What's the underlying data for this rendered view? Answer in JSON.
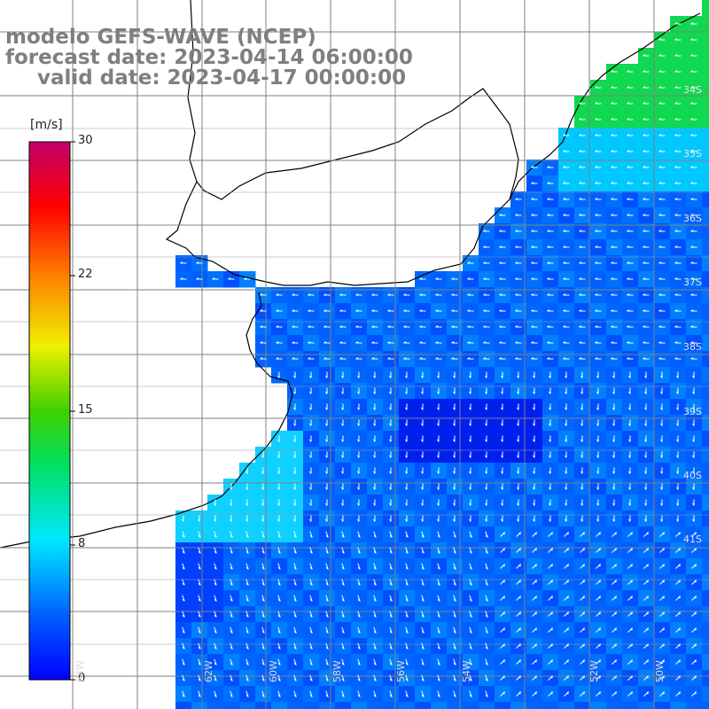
{
  "header": {
    "title_line1": "modelo GEFS-WAVE (NCEP)",
    "title_line2": "forecast date: 2023-04-14 06:00:00",
    "title_line3": "valid date: 2023-04-17 00:00:00"
  },
  "colorbar": {
    "unit": "[m/s]",
    "ticks": [
      "30",
      "22",
      "15",
      "8",
      "0"
    ],
    "colors": [
      "#0000ff",
      "#0088ff",
      "#00d8ff",
      "#00e060",
      "#20d000",
      "#f0f000",
      "#ff8000",
      "#ff0000",
      "#d0005a",
      "#c0006a"
    ]
  },
  "map": {
    "lat_labels": [
      "34S",
      "35S",
      "36S",
      "37S",
      "38S",
      "39S",
      "40S",
      "41S"
    ],
    "lon_labels": [
      "64W",
      "62W",
      "60W",
      "58W",
      "56W",
      "54W",
      "52W",
      "50W"
    ],
    "land_color": "#ffffff",
    "grid_color": "#808080"
  }
}
